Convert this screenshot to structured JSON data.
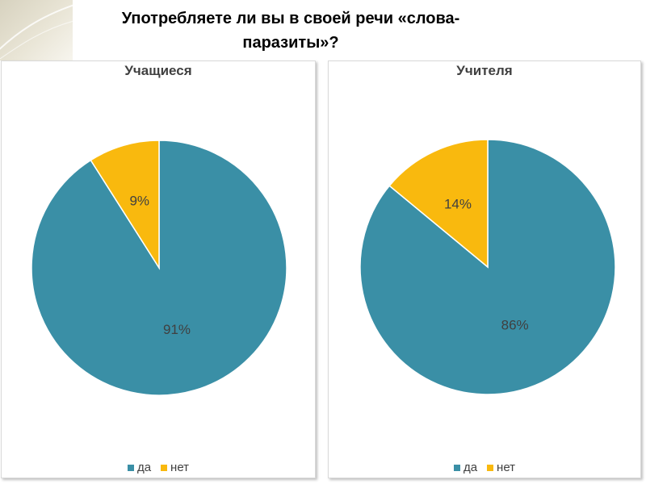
{
  "slide": {
    "title_line1": "Употребляете ли вы в своей речи «слова-",
    "title_line2": "паразиты»?"
  },
  "colors": {
    "yes": "#3A8FA6",
    "no": "#F9B90E",
    "stroke": "#ffffff"
  },
  "chart_data": [
    {
      "type": "pie",
      "title": "Учащиеся",
      "categories": [
        "да",
        "нет"
      ],
      "values": [
        91,
        9
      ],
      "labels": [
        "91%",
        "9%"
      ],
      "legend": "bottom"
    },
    {
      "type": "pie",
      "title": "Учителя",
      "categories": [
        "да",
        "нет"
      ],
      "values": [
        86,
        14
      ],
      "labels": [
        "86%",
        "14%"
      ],
      "legend": "bottom"
    }
  ]
}
